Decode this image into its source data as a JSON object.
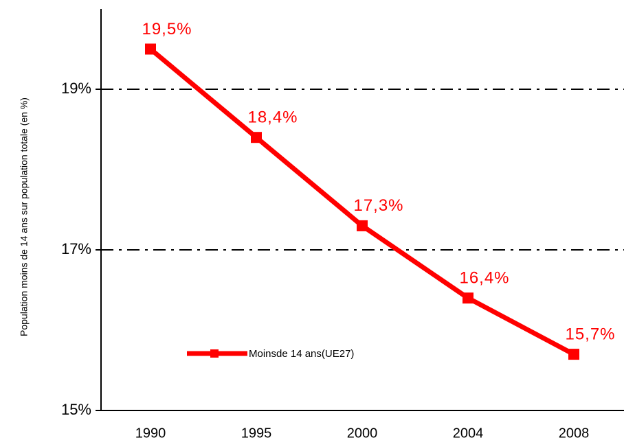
{
  "chart_data": {
    "type": "line",
    "y_label": "Population moins  de 14 ans sur population totale (en %)",
    "categories": [
      "1990",
      "1995",
      "2000",
      "2004",
      "2008"
    ],
    "series": [
      {
        "name": "Moinsde 14 ans(UE27)",
        "color": "#ff0000",
        "values": [
          19.5,
          18.4,
          17.3,
          16.4,
          15.7
        ],
        "value_labels": [
          "19,5%",
          "18,4%",
          "17,3%",
          "16,4%",
          "15,7%"
        ]
      }
    ],
    "ylim": [
      15,
      20
    ],
    "yticks": [
      {
        "value": 15,
        "label": "15%"
      },
      {
        "value": 17,
        "label": "17%"
      },
      {
        "value": 19,
        "label": "19%"
      }
    ],
    "grid": true
  }
}
